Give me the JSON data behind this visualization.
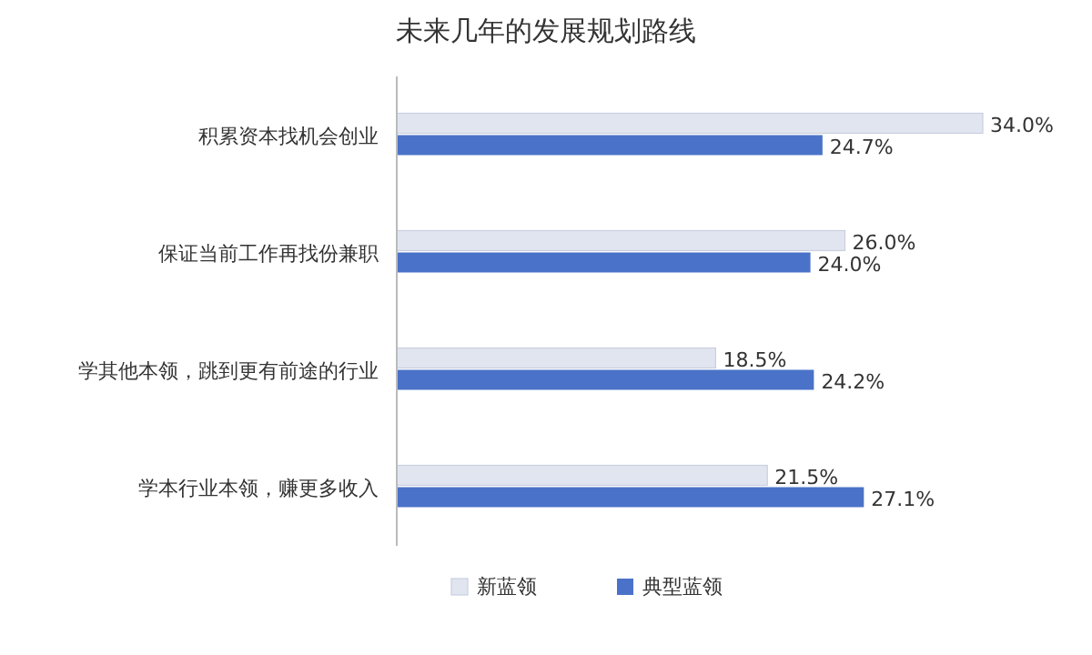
{
  "chart_data": {
    "type": "bar",
    "orientation": "horizontal",
    "title": "未来几年的发展规划路线",
    "categories": [
      "积累资本找机会创业",
      "保证当前工作再找份兼职",
      "学其他本领，跳到更有前途的行业",
      "学本行业本领，赚更多收入"
    ],
    "series": [
      {
        "name": "新蓝领",
        "color": "#e1e5f0",
        "values": [
          34.0,
          26.0,
          18.5,
          21.5
        ],
        "value_labels": [
          "34.0%",
          "26.0%",
          "18.5%",
          "21.5%"
        ]
      },
      {
        "name": "典型蓝领",
        "color": "#4a72c8",
        "values": [
          24.7,
          24.0,
          24.2,
          27.1
        ],
        "value_labels": [
          "24.7%",
          "24.0%",
          "24.2%",
          "27.1%"
        ]
      }
    ],
    "legend": "bottom"
  }
}
